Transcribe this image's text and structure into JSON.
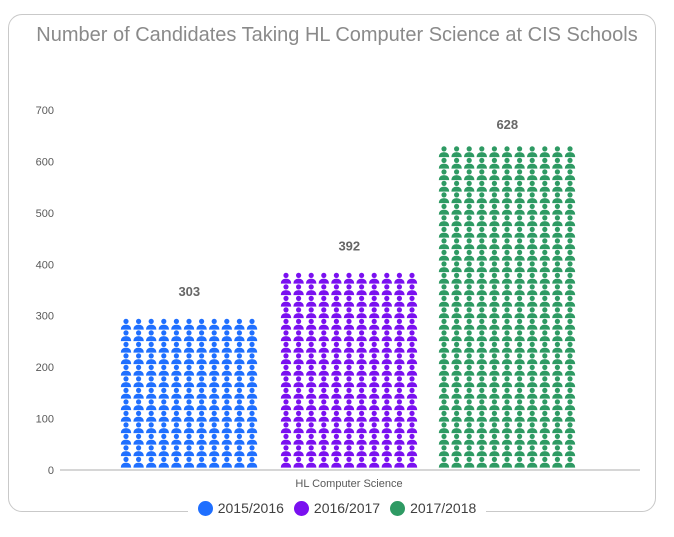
{
  "chart_data": {
    "type": "bar",
    "style": "pictograph",
    "title": "Number of Candidates Taking HL Computer Science at CIS Schools",
    "categories": [
      "HL Computer Science"
    ],
    "series": [
      {
        "name": "2015/2016",
        "values": [
          303
        ],
        "color": "#1f6fff",
        "label": "303"
      },
      {
        "name": "2016/2017",
        "values": [
          392
        ],
        "color": "#7a10f0",
        "label": "392"
      },
      {
        "name": "2017/2018",
        "values": [
          628
        ],
        "color": "#2e9a63",
        "label": "628"
      }
    ],
    "ylim": [
      0,
      700
    ],
    "yticks": [
      "0",
      "100",
      "200",
      "300",
      "400",
      "500",
      "600",
      "700"
    ],
    "grid": false,
    "legend": "bottom",
    "icon": "person-icon"
  }
}
